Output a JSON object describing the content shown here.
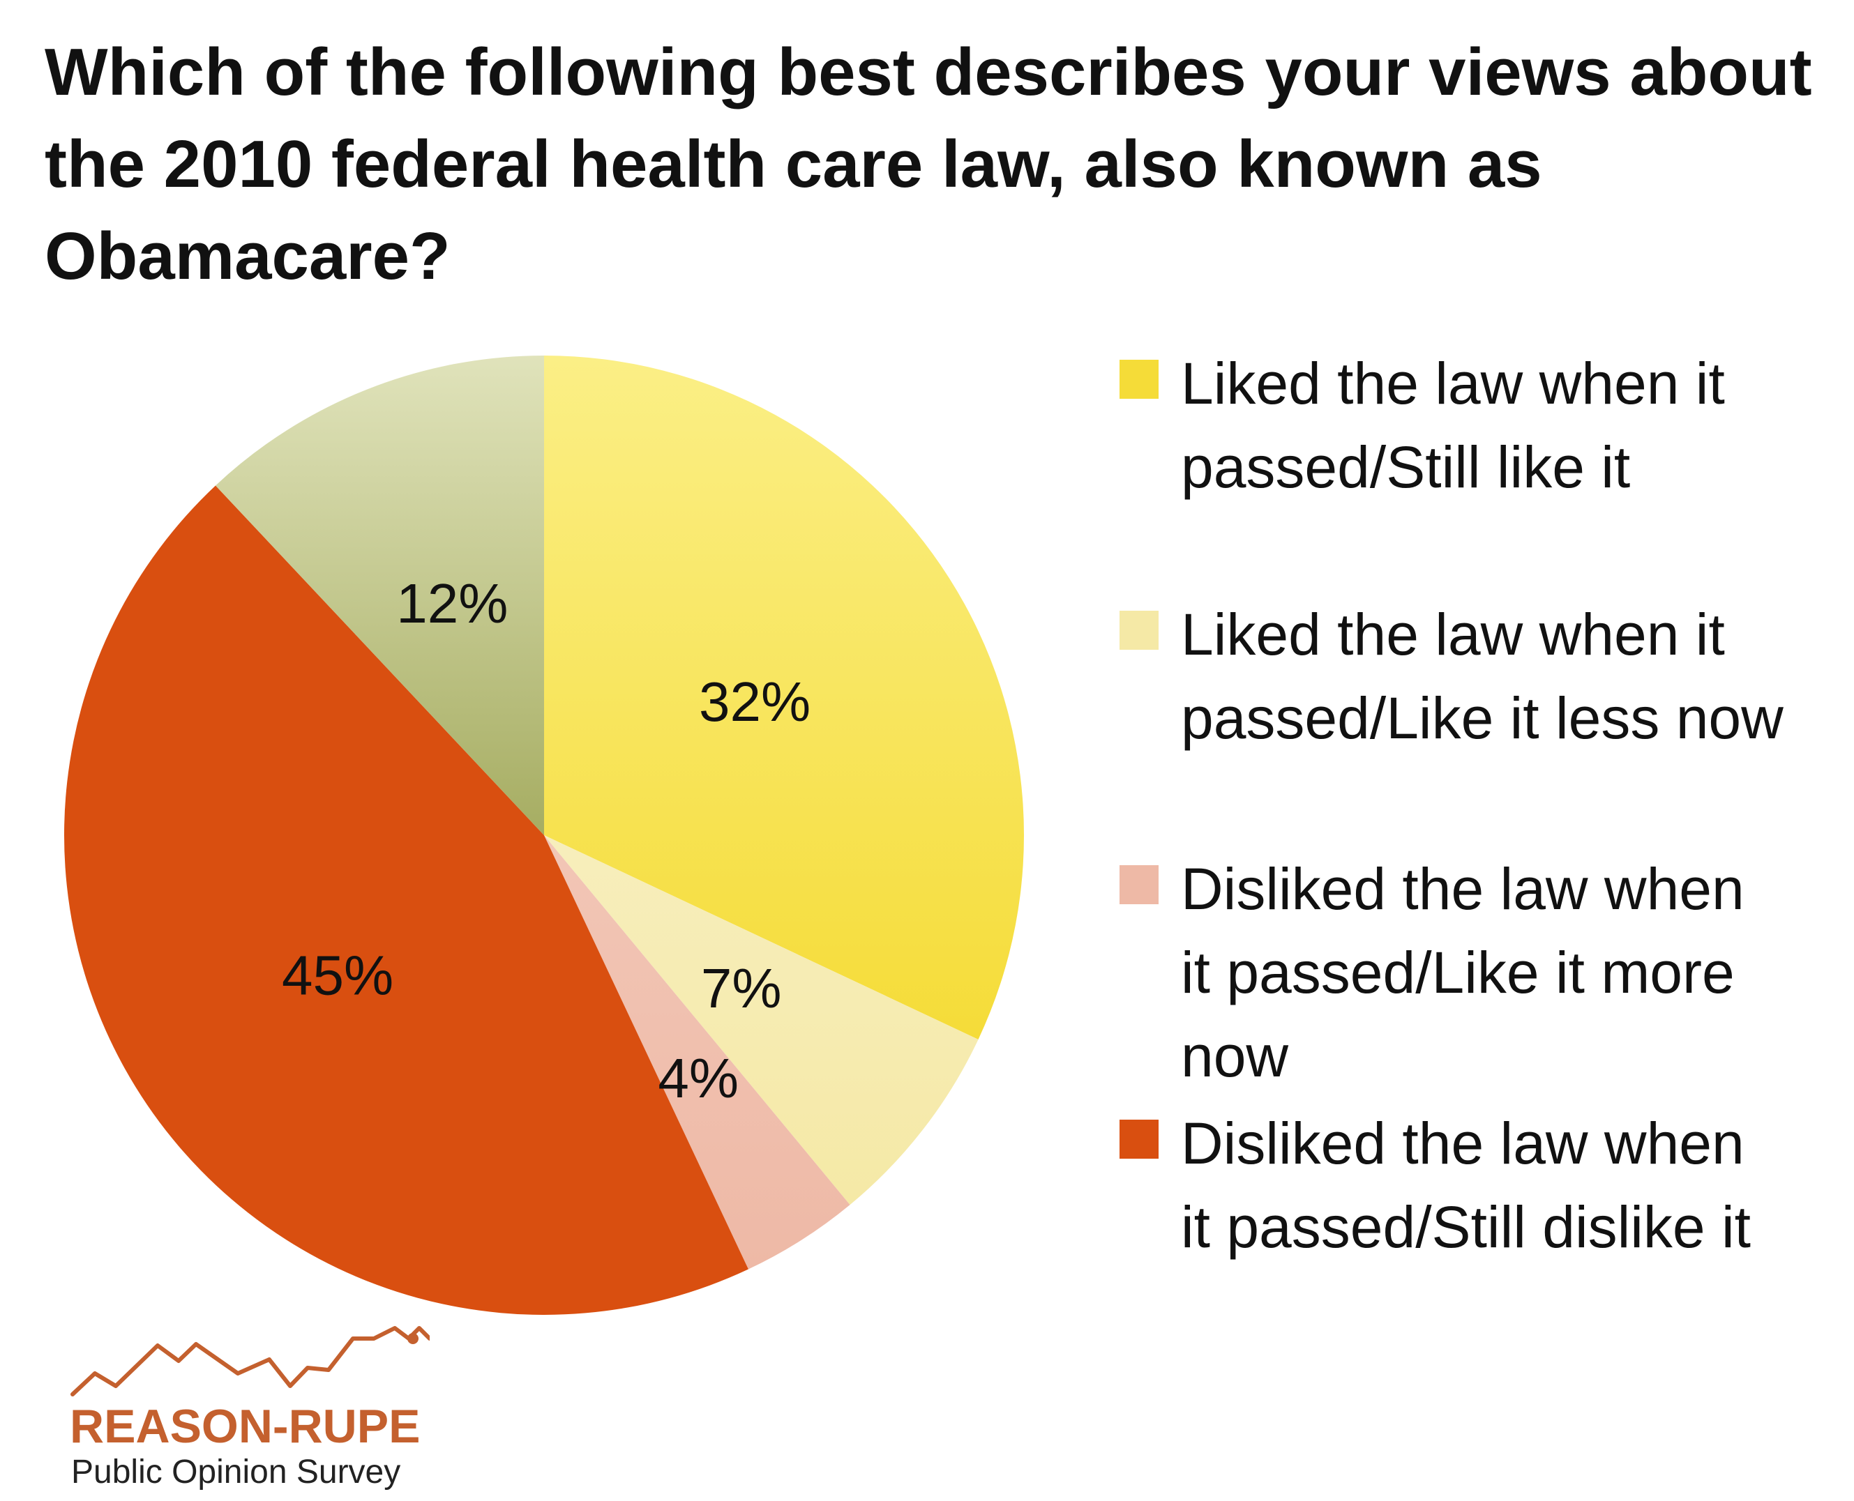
{
  "title_lines": [
    "Which of the following best describes your views about",
    "the 2010 federal health care law, also known as",
    "Obamacare?"
  ],
  "chart_data": {
    "type": "pie",
    "title": "Which of the following best describes your views about the 2010 federal health care law, also known as Obamacare?",
    "start_angle_deg": 0,
    "direction": "clockwise",
    "legend_position": "right",
    "slices": [
      {
        "label_lines": [
          "Liked the law when it",
          "passed/Still like it"
        ],
        "value": 32,
        "value_label": "32%",
        "color": "#f5dc38",
        "color_light": "#fbef86"
      },
      {
        "label_lines": [
          "Liked the law when it",
          "passed/Like it less now"
        ],
        "value": 7,
        "value_label": "7%",
        "color": "#f5e9a6",
        "color_light": "#f7eebc"
      },
      {
        "label_lines": [
          "Disliked the law when",
          "it passed/Like it more",
          "now"
        ],
        "value": 4,
        "value_label": "4%",
        "color": "#eeb9a6",
        "color_light": "#f2c6b6"
      },
      {
        "label_lines": [
          "Disliked the law when",
          "it passed/Still dislike it"
        ],
        "value": 45,
        "value_label": "45%",
        "color": "#d94f10",
        "color_light": "#d94f10"
      },
      {
        "label_lines": [],
        "value": 12,
        "value_label": "12%",
        "color": "#a6ad62",
        "color_light": "#e0e3bb"
      }
    ]
  },
  "logo": {
    "name": "REASON-RUPE",
    "subtitle": "Public Opinion Survey",
    "color": "#c4602e"
  }
}
